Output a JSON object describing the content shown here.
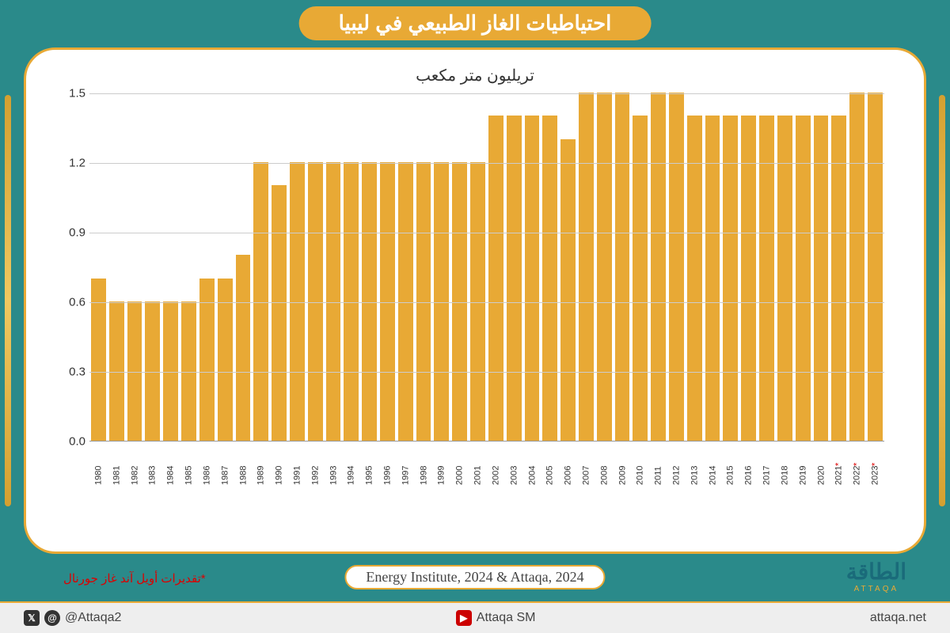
{
  "title": "احتياطيات الغاز الطبيعي في ليبيا",
  "subtitle": "تريليون متر مكعب",
  "chart": {
    "type": "bar",
    "bar_color": "#e8a935",
    "background_color": "#ffffff",
    "grid_color": "#cccccc",
    "ylim": [
      0.0,
      1.5
    ],
    "yticks": [
      0.0,
      0.3,
      0.6,
      0.9,
      1.2,
      1.5
    ],
    "ytick_labels": [
      "0.0",
      "0.3",
      "0.6",
      "0.9",
      "1.2",
      "1.5"
    ],
    "bar_width": 0.75,
    "label_fontsize": 11,
    "ytick_fontsize": 15,
    "years": [
      "1980",
      "1981",
      "1982",
      "1983",
      "1984",
      "1985",
      "1986",
      "1987",
      "1988",
      "1989",
      "1990",
      "1991",
      "1992",
      "1993",
      "1994",
      "1995",
      "1996",
      "1997",
      "1998",
      "1999",
      "2000",
      "2001",
      "2002",
      "2003",
      "2004",
      "2005",
      "2006",
      "2007",
      "2008",
      "2009",
      "2010",
      "2011",
      "2012",
      "2013",
      "2014",
      "2015",
      "2016",
      "2017",
      "2018",
      "2019",
      "2020",
      "2021",
      "2022",
      "2023"
    ],
    "values": [
      0.7,
      0.6,
      0.6,
      0.6,
      0.6,
      0.6,
      0.7,
      0.7,
      0.8,
      1.2,
      1.1,
      1.2,
      1.2,
      1.2,
      1.2,
      1.2,
      1.2,
      1.2,
      1.2,
      1.2,
      1.2,
      1.2,
      1.4,
      1.4,
      1.4,
      1.4,
      1.3,
      1.5,
      1.5,
      1.5,
      1.4,
      1.5,
      1.5,
      1.4,
      1.4,
      1.4,
      1.4,
      1.4,
      1.4,
      1.4,
      1.4,
      1.4,
      1.5,
      1.5
    ],
    "estimate_years": [
      "2021",
      "2022",
      "2023"
    ],
    "estimate_marker": "*",
    "estimate_marker_color": "#d00000"
  },
  "footnote": "*تقديرات أويل آند غاز جورنال",
  "source": "Energy Institute, 2024 & Attaqa, 2024",
  "logo": {
    "main": "الطاقة",
    "sub": "ATTAQA"
  },
  "footer": {
    "handle1": "@Attaqa2",
    "handle2": "Attaqa SM",
    "site": "attaqa.net"
  },
  "colors": {
    "page_bg": "#2a8a8a",
    "accent": "#e8a935",
    "card_bg": "#ffffff",
    "footnote": "#d00000",
    "logo_main": "#1a6b7a"
  }
}
